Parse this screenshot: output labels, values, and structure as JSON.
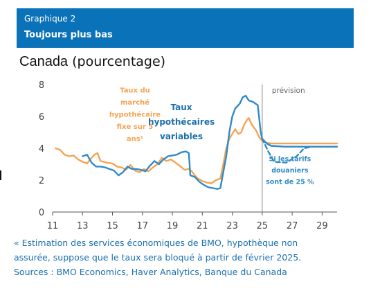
{
  "header": {
    "kicker": "Graphique 2",
    "title": "Toujours plus bas",
    "bg_color": "#0a72b8"
  },
  "subtitle": {
    "country": "Canada",
    "unit": "(pourcentage)"
  },
  "footnote": {
    "line1": "« Estimation des services économiques de BMO, hypothèque non",
    "line2": "assurée, suppose que le taux sera bloqué à partir de février 2025.",
    "sources": "Sources : BMO Economics, Haver Analytics, Banque du Canada"
  },
  "chart_data": {
    "type": "line",
    "title": "",
    "xlabel": "",
    "ylabel": "",
    "xlim": [
      11,
      30
    ],
    "ylim": [
      0,
      8
    ],
    "xticks": [
      11,
      13,
      15,
      17,
      19,
      21,
      23,
      25,
      27,
      29
    ],
    "xtick_labels": [
      "11",
      "13",
      "15",
      "17",
      "19",
      "21",
      "23",
      "25",
      "27",
      "29"
    ],
    "yticks": [
      0,
      2,
      4,
      6,
      8
    ],
    "ytick_labels": [
      "0",
      "2",
      "4",
      "6",
      "8"
    ],
    "grid": false,
    "forecast_start": 25,
    "forecast_label": "prévision",
    "series": [
      {
        "name": "Taux du marché hypothécaire fixe sur 5 ans¹",
        "color": "#f5a352",
        "style": "solid",
        "points": [
          [
            11.2,
            4.0
          ],
          [
            11.5,
            3.9
          ],
          [
            11.8,
            3.6
          ],
          [
            12.1,
            3.5
          ],
          [
            12.4,
            3.55
          ],
          [
            12.7,
            3.3
          ],
          [
            13.0,
            3.15
          ],
          [
            13.3,
            3.05
          ],
          [
            13.6,
            3.4
          ],
          [
            13.8,
            3.6
          ],
          [
            14.0,
            3.7
          ],
          [
            14.2,
            3.2
          ],
          [
            14.6,
            3.1
          ],
          [
            15.0,
            3.05
          ],
          [
            15.3,
            2.85
          ],
          [
            15.6,
            2.8
          ],
          [
            15.9,
            2.65
          ],
          [
            16.2,
            2.95
          ],
          [
            16.5,
            2.6
          ],
          [
            16.8,
            2.5
          ],
          [
            17.1,
            2.7
          ],
          [
            17.4,
            2.55
          ],
          [
            17.7,
            2.8
          ],
          [
            18.0,
            3.0
          ],
          [
            18.3,
            3.4
          ],
          [
            18.6,
            3.2
          ],
          [
            18.9,
            3.3
          ],
          [
            19.2,
            3.1
          ],
          [
            19.5,
            2.9
          ],
          [
            19.8,
            2.65
          ],
          [
            20.1,
            2.7
          ],
          [
            20.3,
            2.55
          ],
          [
            20.5,
            2.3
          ],
          [
            20.7,
            2.1
          ],
          [
            21.0,
            1.95
          ],
          [
            21.3,
            1.85
          ],
          [
            21.6,
            1.8
          ],
          [
            21.9,
            2.0
          ],
          [
            22.2,
            2.1
          ],
          [
            22.4,
            3.0
          ],
          [
            22.6,
            4.0
          ],
          [
            22.8,
            4.6
          ],
          [
            23.0,
            4.9
          ],
          [
            23.2,
            5.2
          ],
          [
            23.4,
            4.9
          ],
          [
            23.6,
            5.0
          ],
          [
            23.8,
            5.5
          ],
          [
            24.0,
            5.8
          ],
          [
            24.1,
            5.9
          ],
          [
            24.3,
            5.5
          ],
          [
            24.6,
            5.1
          ],
          [
            24.8,
            4.7
          ],
          [
            25.0,
            4.45
          ],
          [
            25.3,
            4.35
          ],
          [
            25.6,
            4.3
          ],
          [
            26.5,
            4.3
          ],
          [
            28.0,
            4.3
          ],
          [
            30.0,
            4.3
          ]
        ]
      },
      {
        "name": "Taux hypothécaires variables",
        "color": "#2e8ac9",
        "style": "solid",
        "points": [
          [
            13.0,
            3.5
          ],
          [
            13.3,
            3.6
          ],
          [
            13.6,
            3.1
          ],
          [
            13.9,
            2.85
          ],
          [
            14.2,
            2.85
          ],
          [
            14.5,
            2.8
          ],
          [
            14.8,
            2.7
          ],
          [
            15.1,
            2.6
          ],
          [
            15.4,
            2.3
          ],
          [
            15.7,
            2.5
          ],
          [
            16.0,
            2.85
          ],
          [
            16.3,
            2.7
          ],
          [
            16.6,
            2.7
          ],
          [
            16.9,
            2.65
          ],
          [
            17.2,
            2.55
          ],
          [
            17.5,
            2.9
          ],
          [
            17.8,
            3.2
          ],
          [
            18.1,
            3.0
          ],
          [
            18.4,
            3.3
          ],
          [
            18.7,
            3.5
          ],
          [
            19.0,
            3.55
          ],
          [
            19.3,
            3.6
          ],
          [
            19.6,
            3.75
          ],
          [
            19.9,
            3.8
          ],
          [
            20.1,
            3.7
          ],
          [
            20.2,
            2.3
          ],
          [
            20.5,
            2.2
          ],
          [
            20.8,
            1.9
          ],
          [
            21.1,
            1.7
          ],
          [
            21.4,
            1.55
          ],
          [
            21.7,
            1.5
          ],
          [
            22.0,
            1.45
          ],
          [
            22.2,
            1.5
          ],
          [
            22.4,
            2.5
          ],
          [
            22.6,
            3.5
          ],
          [
            22.8,
            5.0
          ],
          [
            23.0,
            6.0
          ],
          [
            23.2,
            6.5
          ],
          [
            23.5,
            6.8
          ],
          [
            23.7,
            7.2
          ],
          [
            23.9,
            7.3
          ],
          [
            24.1,
            7.0
          ],
          [
            24.4,
            6.9
          ],
          [
            24.7,
            6.7
          ],
          [
            24.9,
            5.0
          ],
          [
            25.0,
            4.6
          ],
          [
            25.3,
            4.3
          ],
          [
            25.6,
            4.15
          ],
          [
            26.5,
            4.1
          ],
          [
            28.0,
            4.1
          ],
          [
            30.0,
            4.1
          ]
        ]
      },
      {
        "name": "Si les tarifs douaniers sont de 25 %",
        "color": "#2e8ac9",
        "style": "dashed",
        "points": [
          [
            25.0,
            4.6
          ],
          [
            25.4,
            3.8
          ],
          [
            25.8,
            3.15
          ],
          [
            26.6,
            3.1
          ],
          [
            27.3,
            3.5
          ],
          [
            27.8,
            4.0
          ],
          [
            28.3,
            4.1
          ],
          [
            30.0,
            4.1
          ]
        ]
      }
    ],
    "annotations": [
      {
        "text": [
          "Taux du",
          "marché",
          "hypothécaire",
          "fixe sur 5",
          "ans¹"
        ],
        "color": "#f5a352",
        "x": 16.5,
        "y": 7.5,
        "size": 10
      },
      {
        "text": [
          "Taux",
          "hypothécaires",
          "variables"
        ],
        "color": "#1a6fae",
        "x": 19.6,
        "y": 6.4,
        "size": 12
      },
      {
        "text": [
          "Si les tarifs",
          "douaniers",
          "sont de 25 %"
        ],
        "color": "#2e8ac9",
        "x": 26.85,
        "y": 3.2,
        "size": 9.5
      }
    ]
  }
}
